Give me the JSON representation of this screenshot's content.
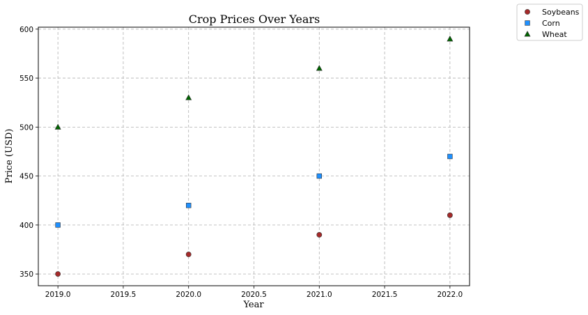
{
  "chart_data": {
    "type": "scatter",
    "title": "Crop Prices Over Years",
    "xlabel": "Year",
    "ylabel": "Price (USD)",
    "x": [
      2019,
      2020,
      2021,
      2022
    ],
    "xlim": [
      2018.85,
      2022.15
    ],
    "ylim": [
      338,
      602
    ],
    "xticks": [
      "2019.0",
      "2019.5",
      "2020.0",
      "2020.5",
      "2021.0",
      "2021.5",
      "2022.0"
    ],
    "yticks": [
      "350",
      "400",
      "450",
      "500",
      "550",
      "600"
    ],
    "grid": true,
    "legend_position": "outside-top-right",
    "series": [
      {
        "name": "Soybeans",
        "marker": "circle",
        "color": "#a52a2a",
        "values": [
          350,
          370,
          390,
          410
        ]
      },
      {
        "name": "Corn",
        "marker": "square",
        "color": "#1e90ff",
        "values": [
          400,
          420,
          450,
          470
        ]
      },
      {
        "name": "Wheat",
        "marker": "triangle",
        "color": "#006400",
        "values": [
          500,
          530,
          560,
          590
        ]
      }
    ]
  }
}
